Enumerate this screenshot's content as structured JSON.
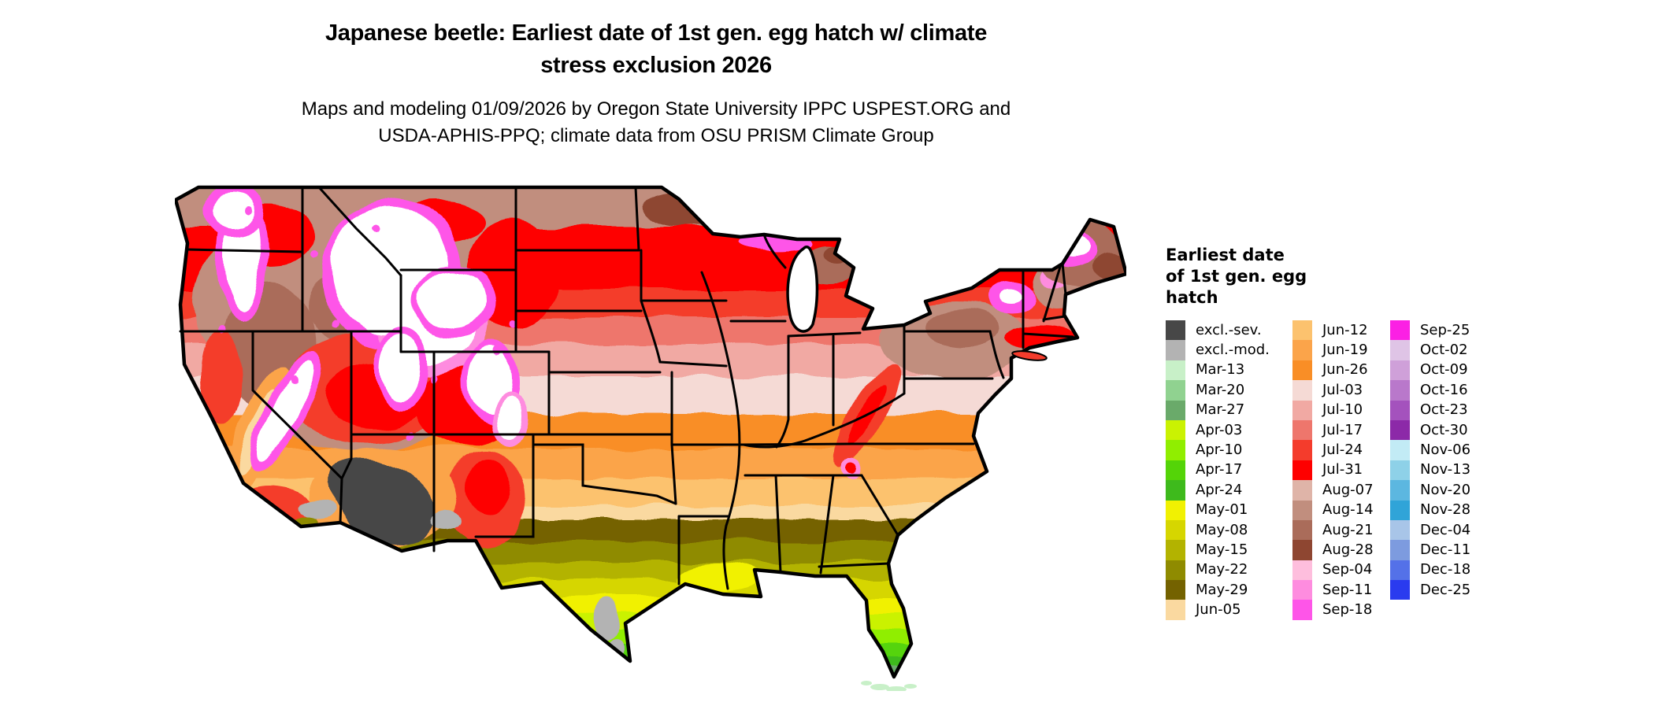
{
  "title": {
    "lines": [
      "Japanese beetle: Earliest date of 1st gen. egg hatch w/ climate",
      "stress exclusion 2026"
    ]
  },
  "subtitle": {
    "lines": [
      "Maps and modeling 01/09/2026 by Oregon State University IPPC USPEST.ORG and",
      "USDA-APHIS-PPQ; climate data from OSU PRISM Climate Group"
    ]
  },
  "map": {
    "region": "Contiguous United States",
    "no_data_color": "#ffffff",
    "border_color": "#000000"
  },
  "legend": {
    "title_lines": [
      "Earliest date",
      "of 1st gen. egg",
      "hatch"
    ],
    "columns": [
      [
        {
          "label": "excl.-sev.",
          "color": "#474747"
        },
        {
          "label": "excl.-mod.",
          "color": "#b3b3b3"
        },
        {
          "label": "Mar-13",
          "color": "#c8f0c8"
        },
        {
          "label": "Mar-20",
          "color": "#90d290"
        },
        {
          "label": "Mar-27",
          "color": "#6aaa6a"
        },
        {
          "label": "Apr-03",
          "color": "#caf202"
        },
        {
          "label": "Apr-10",
          "color": "#90ee00"
        },
        {
          "label": "Apr-17",
          "color": "#54d408"
        },
        {
          "label": "Apr-24",
          "color": "#3eba1c"
        },
        {
          "label": "May-01",
          "color": "#f1f102"
        },
        {
          "label": "May-08",
          "color": "#d6d600"
        },
        {
          "label": "May-15",
          "color": "#b3b300"
        },
        {
          "label": "May-22",
          "color": "#8f8b00"
        },
        {
          "label": "May-29",
          "color": "#746200"
        },
        {
          "label": "Jun-05",
          "color": "#fad9a0"
        }
      ],
      [
        {
          "label": "Jun-12",
          "color": "#fcc26e"
        },
        {
          "label": "Jun-19",
          "color": "#fba44a"
        },
        {
          "label": "Jun-26",
          "color": "#f98e26"
        },
        {
          "label": "Jul-03",
          "color": "#f5dad5"
        },
        {
          "label": "Jul-10",
          "color": "#f1a9a3"
        },
        {
          "label": "Jul-17",
          "color": "#ee766c"
        },
        {
          "label": "Jul-24",
          "color": "#f43c2c"
        },
        {
          "label": "Jul-31",
          "color": "#fe0000"
        },
        {
          "label": "Aug-07",
          "color": "#dfb4a8"
        },
        {
          "label": "Aug-14",
          "color": "#c18e7e"
        },
        {
          "label": "Aug-21",
          "color": "#aa6c5a"
        },
        {
          "label": "Aug-28",
          "color": "#8e4631"
        },
        {
          "label": "Sep-04",
          "color": "#febedd"
        },
        {
          "label": "Sep-11",
          "color": "#fe8cdf"
        },
        {
          "label": "Sep-18",
          "color": "#fe55e8"
        }
      ],
      [
        {
          "label": "Sep-25",
          "color": "#fb20e4"
        },
        {
          "label": "Oct-02",
          "color": "#dfc4e6"
        },
        {
          "label": "Oct-09",
          "color": "#cfa0d9"
        },
        {
          "label": "Oct-16",
          "color": "#b978cb"
        },
        {
          "label": "Oct-23",
          "color": "#a452bd"
        },
        {
          "label": "Oct-30",
          "color": "#8c29a8"
        },
        {
          "label": "Nov-06",
          "color": "#c2ebf5"
        },
        {
          "label": "Nov-13",
          "color": "#8ed1e8"
        },
        {
          "label": "Nov-20",
          "color": "#5cb7e0"
        },
        {
          "label": "Nov-28",
          "color": "#30a4d8"
        },
        {
          "label": "Dec-04",
          "color": "#a8c5e8"
        },
        {
          "label": "Dec-11",
          "color": "#7d9bdf"
        },
        {
          "label": "Dec-18",
          "color": "#5471e8"
        },
        {
          "label": "Dec-25",
          "color": "#2a3bef"
        }
      ]
    ]
  }
}
